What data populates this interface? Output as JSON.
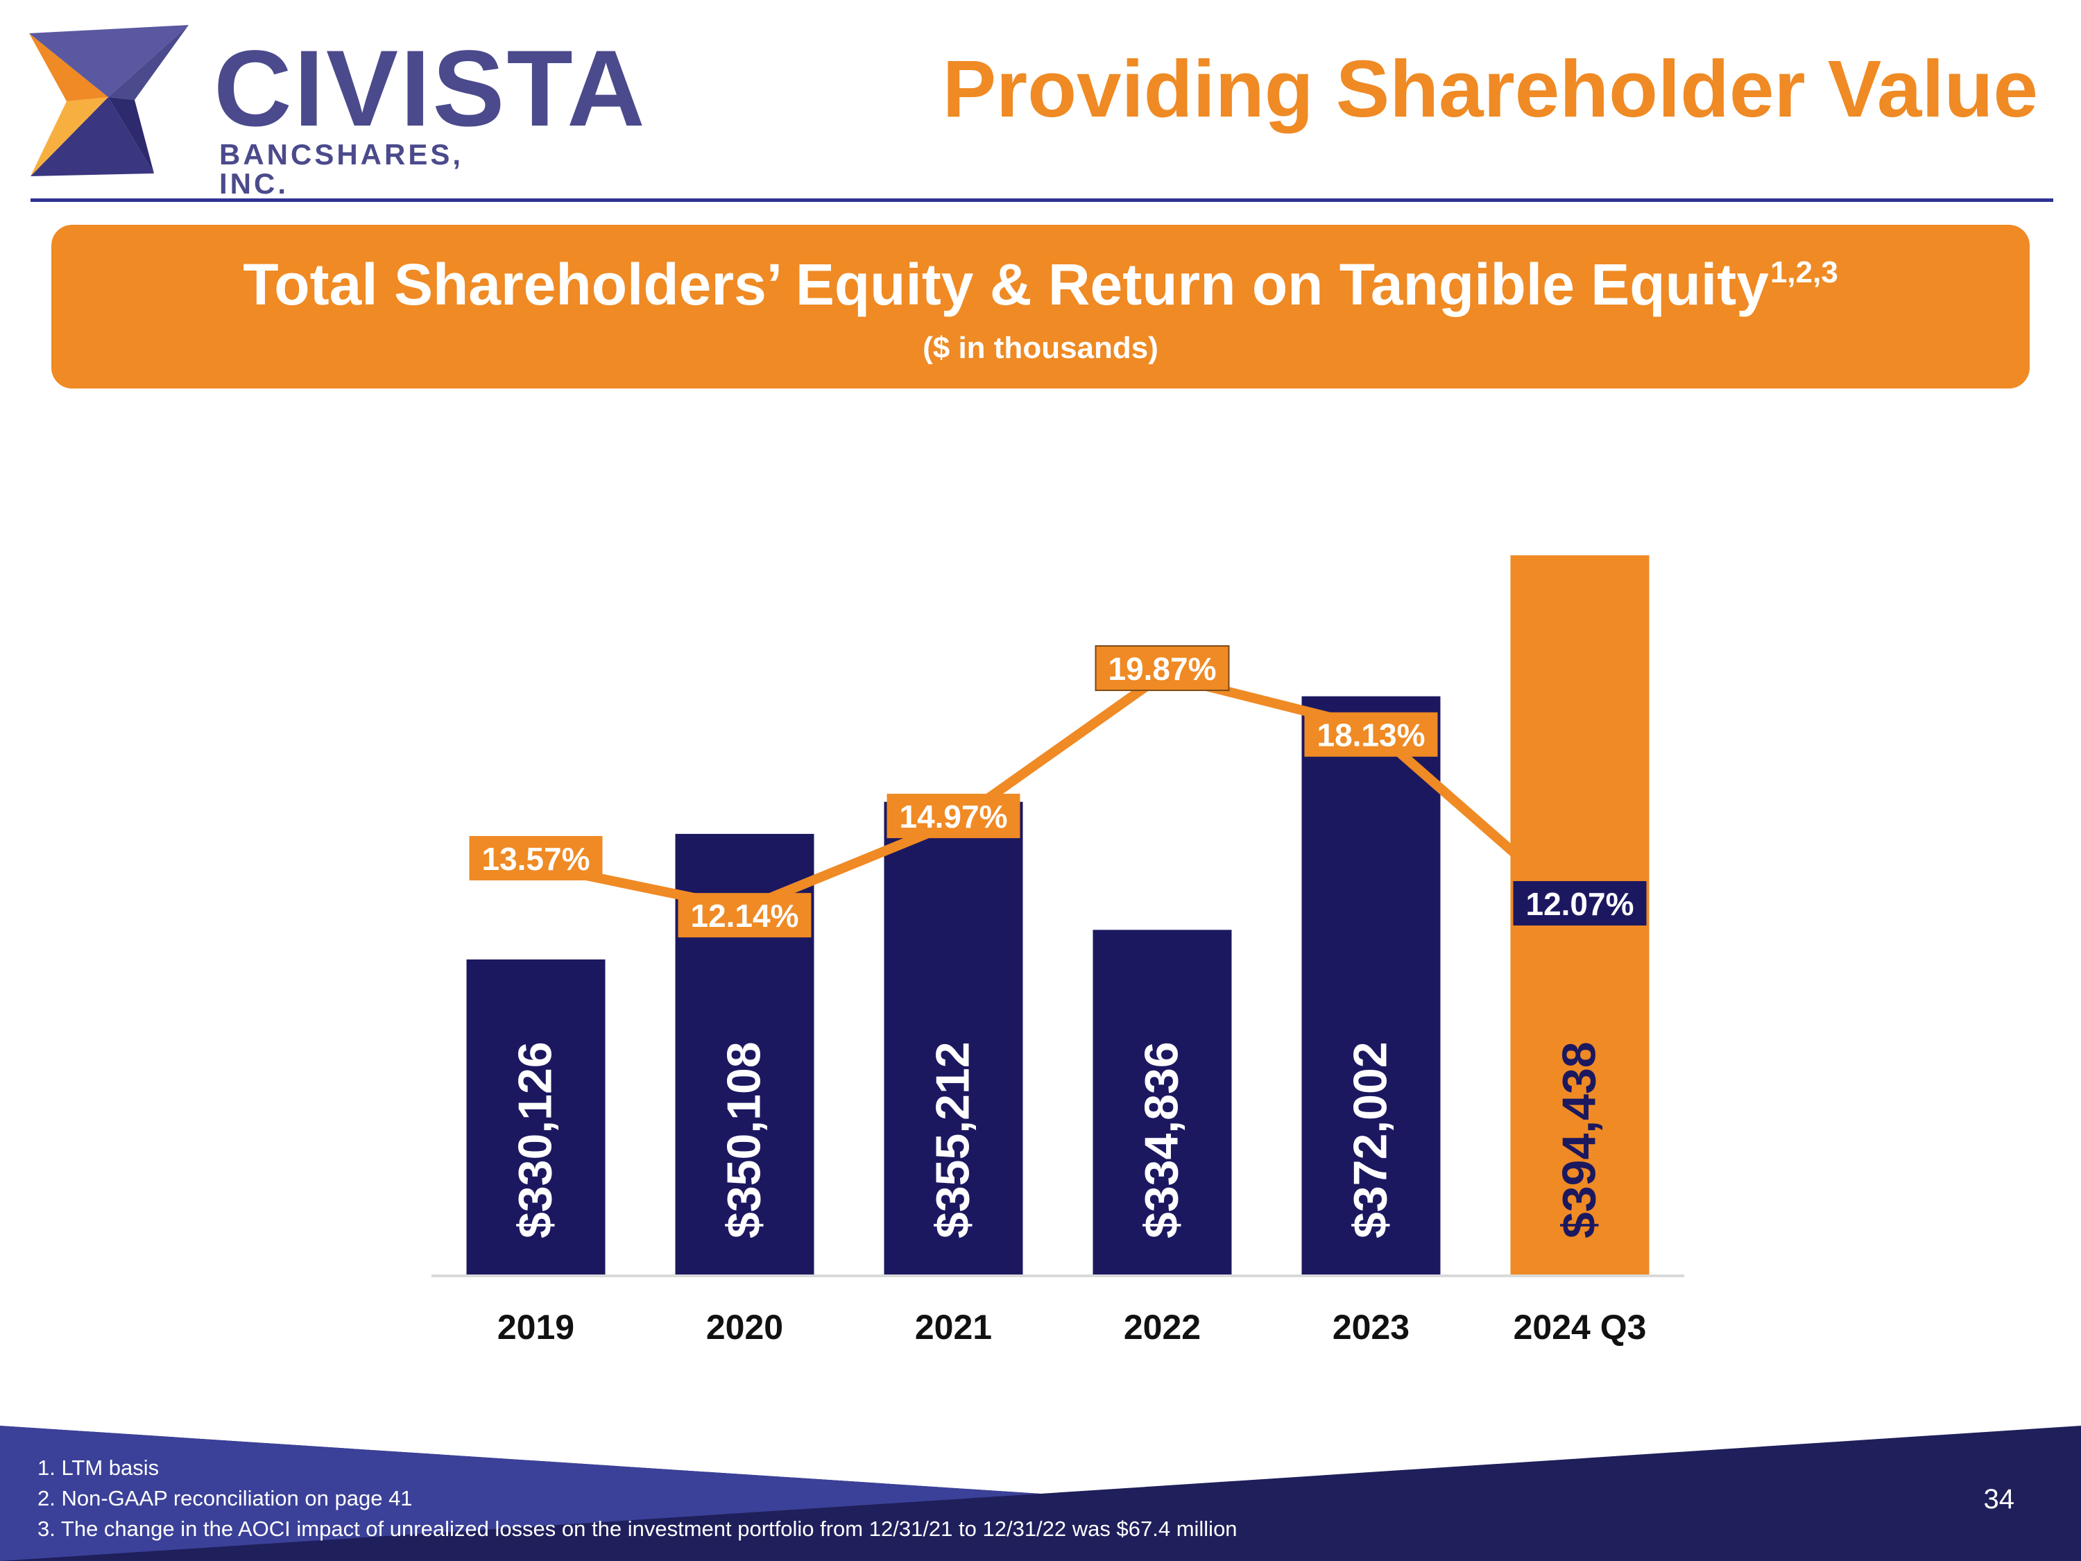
{
  "logo": {
    "name": "CIVISTA",
    "subtitle": "BANCSHARES, INC."
  },
  "page_title": "Providing Shareholder Value",
  "banner": {
    "title": "Total Shareholders’ Equity & Return on Tangible Equity",
    "title_superscript": "1,2,3",
    "subtitle": "($ in thousands)"
  },
  "chart_data": {
    "type": "bar",
    "categories": [
      "2019",
      "2020",
      "2021",
      "2022",
      "2023",
      "2024 Q3"
    ],
    "bar_labels": [
      "$330,126",
      "$350,108",
      "$355,212",
      "$334,836",
      "$372,002",
      "$394,438"
    ],
    "line_labels": [
      "13.57%",
      "12.14%",
      "14.97%",
      "19.87%",
      "18.13%",
      "12.07%"
    ],
    "series": [
      {
        "values": [
          330126,
          350108,
          355212,
          334836,
          372002,
          394438
        ],
        "axis": "left",
        "colors": [
          "#1c1860",
          "#1c1860",
          "#1c1860",
          "#1c1860",
          "#1c1860",
          "#ef8a24"
        ]
      },
      {
        "values": [
          13.57,
          12.14,
          14.97,
          19.87,
          18.13,
          12.07
        ],
        "axis": "right",
        "render": "line",
        "color": "#ef8a24"
      }
    ],
    "ylim": [
      280000,
      400000
    ],
    "ylim_right": [
      0,
      25
    ],
    "grid": false,
    "legend": "none"
  },
  "footnotes": [
    "1. LTM basis",
    "2. Non-GAAP reconciliation on page 41",
    "3. The change in the AOCI impact of unrealized losses on the investment portfolio from 12/31/21 to 12/31/22 was $67.4 million"
  ],
  "page_number": "34",
  "colors": {
    "navy": "#1c1860",
    "orange": "#ef8a24",
    "brand_purple": "#4b4a8c",
    "footer_dark": "#1f1f5b",
    "footer_light": "#3b4198"
  }
}
